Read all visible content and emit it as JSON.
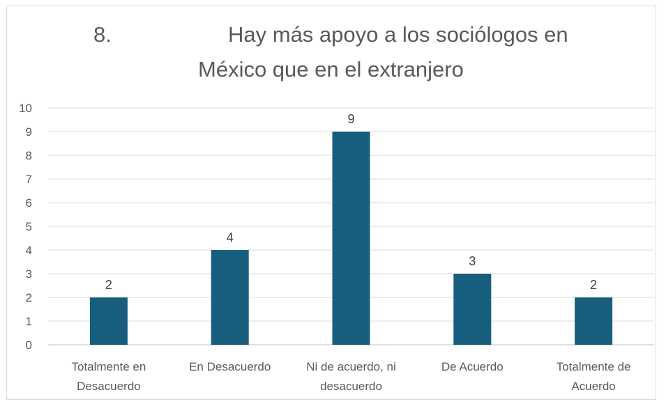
{
  "chart_data": {
    "type": "bar",
    "title_number": "8.",
    "title_line1": "Hay más apoyo a los sociólogos en",
    "title_line2": "México que en el extranjero",
    "categories": [
      [
        "Totalmente en",
        "Desacuerdo"
      ],
      [
        "En Desacuerdo"
      ],
      [
        "Ni de acuerdo, ni",
        "desacuerdo"
      ],
      [
        "De Acuerdo"
      ],
      [
        "Totalmente de",
        "Acuerdo"
      ]
    ],
    "values": [
      2,
      4,
      9,
      3,
      2
    ],
    "ylim": [
      0,
      10
    ],
    "yticks": [
      "0",
      "1",
      "2",
      "3",
      "4",
      "5",
      "6",
      "7",
      "8",
      "9",
      "10"
    ],
    "bar_color": "#175e7e",
    "grid": true,
    "data_labels": true
  }
}
